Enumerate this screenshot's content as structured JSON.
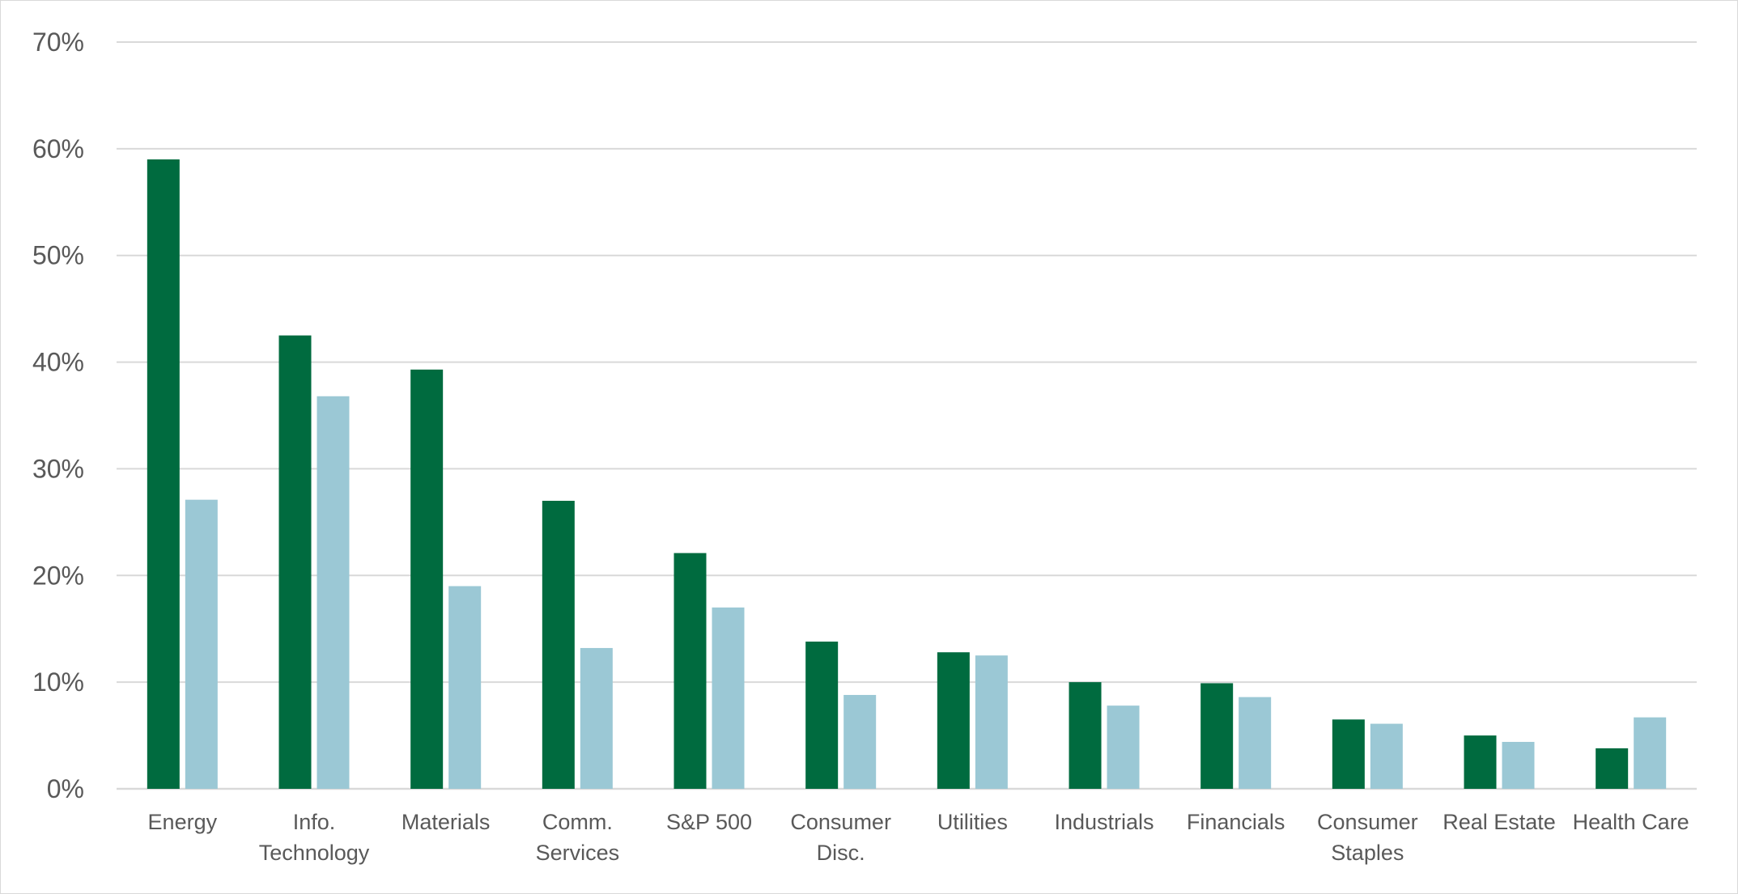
{
  "chart_data": {
    "type": "bar",
    "categories": [
      [
        "Energy"
      ],
      [
        "Info.",
        "Technology"
      ],
      [
        "Materials"
      ],
      [
        "Comm.",
        "Services"
      ],
      [
        "S&P 500"
      ],
      [
        "Consumer",
        "Disc."
      ],
      [
        "Utilities"
      ],
      [
        "Industrials"
      ],
      [
        "Financials"
      ],
      [
        "Consumer",
        "Staples"
      ],
      [
        "Real Estate"
      ],
      [
        "Health Care"
      ]
    ],
    "series": [
      {
        "color": "#006B3F",
        "values": [
          59.0,
          42.5,
          39.3,
          27.0,
          22.1,
          13.8,
          12.8,
          10.0,
          9.9,
          6.5,
          5.0,
          3.8
        ]
      },
      {
        "color": "#9BC8D5",
        "values": [
          27.1,
          36.8,
          19.0,
          13.2,
          17.0,
          8.8,
          12.5,
          7.8,
          8.6,
          6.1,
          4.4,
          6.7
        ]
      }
    ],
    "title": "",
    "xlabel": "",
    "ylabel": "",
    "ylim": [
      0,
      70
    ],
    "y_ticks": [
      0,
      10,
      20,
      30,
      40,
      50,
      60,
      70
    ],
    "y_tick_suffix": "%",
    "grid": true,
    "legend": "none",
    "colors": {
      "gridline": "#D9D9D9",
      "axis_text": "#595959"
    }
  }
}
